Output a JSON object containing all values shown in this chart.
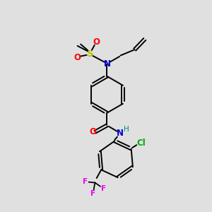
{
  "bg_color": "#e0e0e0",
  "bond_color": "#000000",
  "colors": {
    "N": "#0000cc",
    "O": "#ff0000",
    "S": "#bbbb00",
    "Cl": "#00aa00",
    "F": "#ee00ee",
    "H": "#008888",
    "C": "#000000"
  },
  "figsize": [
    3.0,
    3.0
  ],
  "dpi": 100,
  "lw": 1.4,
  "fs": 8.5,
  "fs_small": 7.5,
  "ring_r": 0.88,
  "xlim": [
    0,
    10
  ],
  "ylim": [
    0,
    10
  ]
}
